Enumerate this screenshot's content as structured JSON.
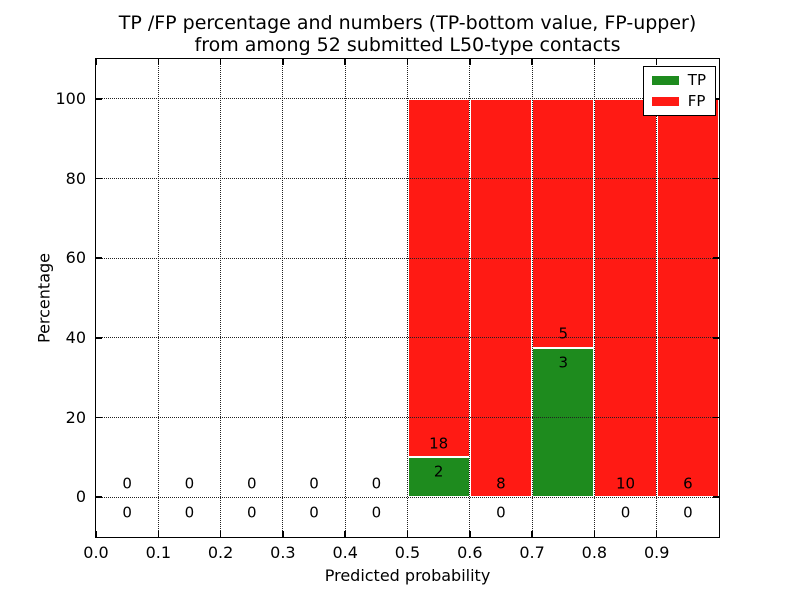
{
  "figure": {
    "title_line1": "TP /FP percentage and numbers (TP-bottom value, FP-upper)",
    "title_line2": "from among 52 submitted L50-type contacts"
  },
  "chart_data": {
    "type": "bar",
    "stacked": true,
    "title": "TP /FP percentage and numbers (TP-bottom value, FP-upper) from among 52 submitted L50-type contacts",
    "xlabel": "Predicted probability",
    "ylabel": "Percentage",
    "xlim": [
      0.0,
      1.0
    ],
    "ylim": [
      -10,
      110
    ],
    "xticks": [
      {
        "v": 0.0,
        "label": "0.0"
      },
      {
        "v": 0.1,
        "label": "0.1"
      },
      {
        "v": 0.2,
        "label": "0.2"
      },
      {
        "v": 0.3,
        "label": "0.3"
      },
      {
        "v": 0.4,
        "label": "0.4"
      },
      {
        "v": 0.5,
        "label": "0.5"
      },
      {
        "v": 0.6,
        "label": "0.6"
      },
      {
        "v": 0.7,
        "label": "0.7"
      },
      {
        "v": 0.8,
        "label": "0.8"
      },
      {
        "v": 0.9,
        "label": "0.9"
      }
    ],
    "yticks": [
      {
        "v": 0,
        "label": "0"
      },
      {
        "v": 20,
        "label": "20"
      },
      {
        "v": 40,
        "label": "40"
      },
      {
        "v": 60,
        "label": "60"
      },
      {
        "v": 80,
        "label": "80"
      },
      {
        "v": 100,
        "label": "100"
      }
    ],
    "grid": "dotted on both axes, drawn above bars",
    "legend": {
      "position": "upper right",
      "entries": [
        {
          "name": "TP",
          "color": "#1e8b1e"
        },
        {
          "name": "FP",
          "color": "#ff1a14"
        }
      ]
    },
    "total_contacts": 52,
    "bins": [
      {
        "x0": 0.0,
        "x1": 0.1,
        "tp_count": 0,
        "fp_count": 0,
        "tp_pct": 0,
        "fp_pct": 0
      },
      {
        "x0": 0.1,
        "x1": 0.2,
        "tp_count": 0,
        "fp_count": 0,
        "tp_pct": 0,
        "fp_pct": 0
      },
      {
        "x0": 0.2,
        "x1": 0.3,
        "tp_count": 0,
        "fp_count": 0,
        "tp_pct": 0,
        "fp_pct": 0
      },
      {
        "x0": 0.3,
        "x1": 0.4,
        "tp_count": 0,
        "fp_count": 0,
        "tp_pct": 0,
        "fp_pct": 0
      },
      {
        "x0": 0.4,
        "x1": 0.5,
        "tp_count": 0,
        "fp_count": 0,
        "tp_pct": 0,
        "fp_pct": 0
      },
      {
        "x0": 0.5,
        "x1": 0.6,
        "tp_count": 2,
        "fp_count": 18,
        "tp_pct": 10,
        "fp_pct": 90
      },
      {
        "x0": 0.6,
        "x1": 0.7,
        "tp_count": 0,
        "fp_count": 8,
        "tp_pct": 0,
        "fp_pct": 100
      },
      {
        "x0": 0.7,
        "x1": 0.8,
        "tp_count": 3,
        "fp_count": 5,
        "tp_pct": 37.5,
        "fp_pct": 62.5
      },
      {
        "x0": 0.8,
        "x1": 0.9,
        "tp_count": 0,
        "fp_count": 10,
        "tp_pct": 0,
        "fp_pct": 100
      },
      {
        "x0": 0.9,
        "x1": 1.0,
        "tp_count": 0,
        "fp_count": 6,
        "tp_pct": 0,
        "fp_pct": 100
      }
    ],
    "colors": {
      "tp": "#1e8b1e",
      "fp": "#ff1a14",
      "grid": "#222222",
      "text": "#000000"
    }
  }
}
